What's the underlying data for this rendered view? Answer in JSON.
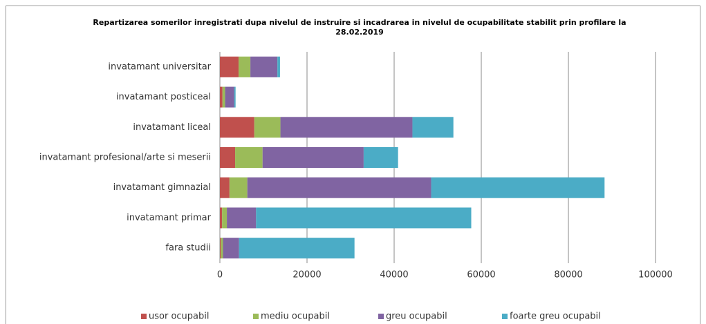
{
  "chart_data": {
    "type": "stacked_barh",
    "title": "Repartizarea somerilor inregistrati dupa  nivelul de instruire si incadrarea in nivelul de ocupabilitate stabilit prin profilare la 28.02.2019",
    "categories": [
      "invatamant universitar",
      "invatamant posticeal",
      "invatamant liceal",
      "invatamant profesional/arte si meserii",
      "invatamant gimnazial",
      "invatamant primar",
      "fara studii"
    ],
    "series": [
      {
        "name": "usor ocupabil",
        "color": "#c0504d",
        "values": [
          4300,
          600,
          7900,
          3500,
          2200,
          500,
          200
        ]
      },
      {
        "name": "mediu ocupabil",
        "color": "#9bbb59",
        "values": [
          2700,
          600,
          6000,
          6300,
          4100,
          1100,
          500
        ]
      },
      {
        "name": "greu ocupabil",
        "color": "#8064a2",
        "values": [
          6200,
          2100,
          30300,
          23200,
          42200,
          6700,
          3700
        ]
      },
      {
        "name": "foarte greu ocupabil",
        "color": "#4bacc6",
        "values": [
          600,
          300,
          9400,
          7900,
          39800,
          49400,
          26500
        ]
      }
    ],
    "xlim": [
      0,
      100000
    ],
    "xticks": [
      0,
      20000,
      40000,
      60000,
      80000,
      100000
    ],
    "grid": true,
    "legend": "bottom"
  }
}
